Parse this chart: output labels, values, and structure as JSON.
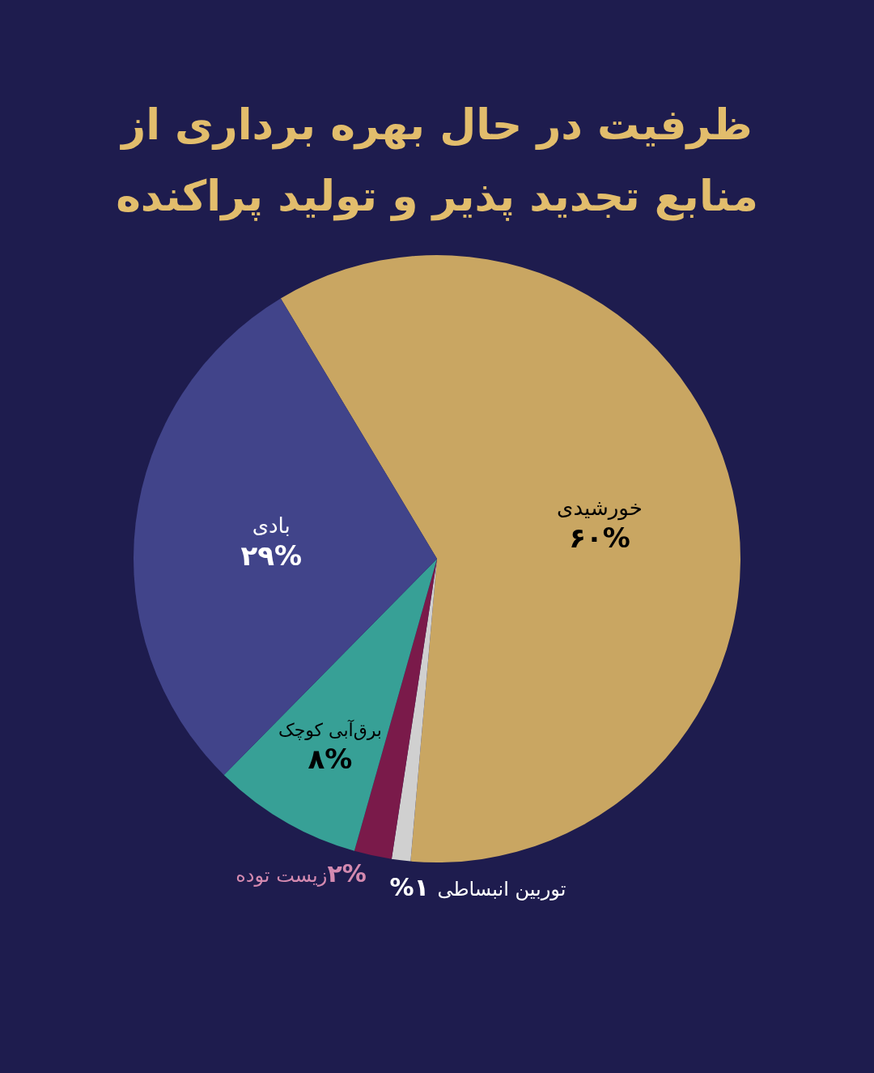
{
  "chart_data": {
    "type": "pie",
    "title": "ظرفیت در حال بهره برداری از منابع تجدید پذیر و تولید پراکنده",
    "categories": [
      "خورشیدی",
      "توربین انبساطی",
      "زیست توده",
      "برق‌آبی کوچک",
      "بادی"
    ],
    "values": [
      60,
      1,
      2,
      8,
      29
    ],
    "value_labels": [
      "۶۰%",
      "۱%",
      "۲%",
      "۸%",
      "۲۹%"
    ],
    "colors": [
      "#c9a662",
      "#d0d0d0",
      "#7a1a4a",
      "#37a096",
      "#41448a"
    ]
  }
}
